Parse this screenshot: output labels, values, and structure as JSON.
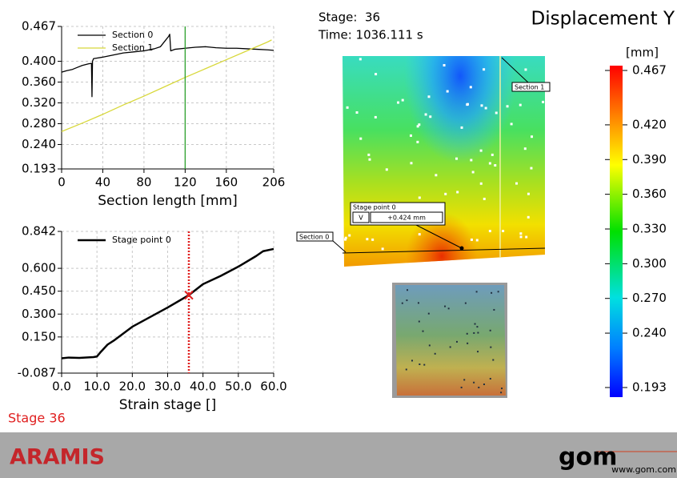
{
  "header": {
    "stage_label": "Stage:",
    "stage": "36",
    "time": "Time: 1036.111 s",
    "title": "Displacement Y"
  },
  "chart_data": [
    {
      "type": "line",
      "xlabel": "Section length [mm]",
      "xlim": [
        0,
        206
      ],
      "xticks": [
        0,
        40,
        80,
        120,
        160,
        206
      ],
      "ylim": [
        0.193,
        0.467
      ],
      "yticks": [
        0.193,
        {
          "value": 0.24,
          "label": "0.240"
        },
        {
          "value": 0.28,
          "label": "0.280"
        },
        {
          "value": 0.32,
          "label": "0.320"
        },
        {
          "value": 0.36,
          "label": "0.360"
        },
        {
          "value": 0.4,
          "label": "0.400"
        },
        0.467
      ],
      "grid": true,
      "legend": "upper left",
      "cursor": 120,
      "cursor_color": "#2ca02c",
      "cursor_style": "solid",
      "series": [
        {
          "name": "Section 0",
          "color": "#000000",
          "width": 1.3,
          "x": [
            0,
            5,
            10,
            15,
            20,
            26,
            29,
            29.5,
            30,
            31,
            40,
            50,
            60,
            70,
            80,
            90,
            96,
            100,
            104,
            105,
            106,
            110,
            120,
            130,
            140,
            150,
            160,
            170,
            180,
            190,
            200,
            206
          ],
          "values": [
            0.379,
            0.382,
            0.384,
            0.388,
            0.392,
            0.395,
            0.396,
            0.332,
            0.4,
            0.405,
            0.408,
            0.412,
            0.416,
            0.418,
            0.42,
            0.424,
            0.428,
            0.438,
            0.448,
            0.452,
            0.42,
            0.423,
            0.425,
            0.427,
            0.428,
            0.426,
            0.425,
            0.425,
            0.424,
            0.423,
            0.422,
            0.421
          ]
        },
        {
          "name": "Section 1",
          "color": "#d8d83a",
          "width": 1.3,
          "x": [
            0,
            20,
            40,
            60,
            80,
            100,
            120,
            140,
            160,
            180,
            200,
            204
          ],
          "values": [
            0.265,
            0.281,
            0.298,
            0.316,
            0.333,
            0.351,
            0.369,
            0.386,
            0.403,
            0.42,
            0.437,
            0.441
          ]
        }
      ]
    },
    {
      "type": "line",
      "xlabel": "Strain stage []",
      "xlim": [
        0,
        60
      ],
      "xticks": [
        {
          "value": 0,
          "label": "0.0"
        },
        {
          "value": 10,
          "label": "10.0"
        },
        {
          "value": 20,
          "label": "20.0"
        },
        {
          "value": 30,
          "label": "30.0"
        },
        {
          "value": 40,
          "label": "40.0"
        },
        {
          "value": 50,
          "label": "50.0"
        },
        {
          "value": 60,
          "label": "60.0"
        }
      ],
      "ylim": [
        -0.087,
        0.842
      ],
      "yticks": [
        -0.087,
        {
          "value": 0.15,
          "label": "0.150"
        },
        {
          "value": 0.3,
          "label": "0.300"
        },
        {
          "value": 0.45,
          "label": "0.450"
        },
        {
          "value": 0.6,
          "label": "0.600"
        },
        0.842
      ],
      "grid": true,
      "legend": "upper left",
      "cursor": 36,
      "cursor_color": "#e02020",
      "cursor_style": "dotted",
      "cursor_marker": "x",
      "series": [
        {
          "name": "Stage point 0",
          "color": "#000000",
          "width": 2.5,
          "x": [
            0,
            2,
            5,
            9,
            10,
            11,
            13,
            15,
            20,
            25,
            30,
            36,
            40,
            45,
            50,
            55,
            57,
            60
          ],
          "values": [
            0.01,
            0.015,
            0.013,
            0.018,
            0.022,
            0.05,
            0.1,
            0.13,
            0.217,
            0.28,
            0.343,
            0.424,
            0.496,
            0.55,
            0.611,
            0.68,
            0.712,
            0.727
          ]
        }
      ]
    }
  ],
  "colorbar": {
    "unit": "[mm]",
    "lim": [
      0.193,
      0.467
    ],
    "ticks": [
      0.467,
      {
        "value": 0.42,
        "label": "0.420"
      },
      {
        "value": 0.39,
        "label": "0.390"
      },
      {
        "value": 0.36,
        "label": "0.360"
      },
      {
        "value": 0.33,
        "label": "0.330"
      },
      {
        "value": 0.3,
        "label": "0.300"
      },
      {
        "value": 0.27,
        "label": "0.270"
      },
      {
        "value": 0.24,
        "label": "0.240"
      },
      0.193
    ]
  },
  "stage_point": {
    "component": "V",
    "value_label": "+0.424 mm"
  },
  "status": "Stage 36",
  "footer": {
    "product": "ARAMIS",
    "logo": "gom",
    "url": "www.gom.com"
  }
}
